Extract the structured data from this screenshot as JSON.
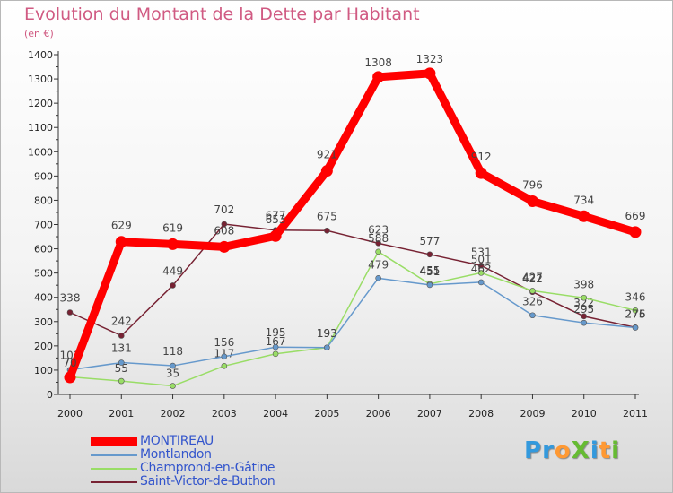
{
  "title": "Evolution du Montant de la Dette par Habitant",
  "subtitle": "(en €)",
  "logo_text": "ProXiti",
  "logo_letters": [
    "P",
    "r",
    "o",
    "X",
    "i",
    "t",
    "i"
  ],
  "logo_colors": [
    "#3399dd",
    "#3399dd",
    "#ff9933",
    "#66bb33",
    "#3399dd",
    "#ff9933",
    "#66bb33"
  ],
  "chart_data": {
    "type": "line",
    "title": "Evolution du Montant de la Dette par Habitant",
    "ylabel": "(en €)",
    "xlabel": "",
    "ylim": [
      0,
      1400
    ],
    "yticks": [
      0,
      100,
      200,
      300,
      400,
      500,
      600,
      700,
      800,
      900,
      1000,
      1100,
      1200,
      1300,
      1400
    ],
    "x": [
      "2000",
      "2001",
      "2002",
      "2003",
      "2004",
      "2005",
      "2006",
      "2007",
      "2008",
      "2009",
      "2010",
      "2011"
    ],
    "grid": false,
    "series": [
      {
        "name": "MONTIREAU",
        "color": "#ff0000",
        "values": [
          70,
          629,
          619,
          608,
          653,
          921,
          1308,
          1323,
          912,
          796,
          734,
          669
        ],
        "labels": [
          "70",
          "629",
          "619",
          "608",
          "653",
          "921",
          "1308",
          "1323",
          "912",
          "796",
          "734",
          "669"
        ]
      },
      {
        "name": "Montlandon",
        "color": "#6699cc",
        "values": [
          101,
          131,
          118,
          156,
          195,
          193,
          479,
          451,
          462,
          326,
          295,
          275
        ],
        "labels": [
          "101",
          "131",
          "118",
          "156",
          "195",
          "193",
          "479",
          "451",
          "462",
          "326",
          "295",
          "275"
        ]
      },
      {
        "name": "Champrond-en-Gâtine",
        "color": "#99dd66",
        "values": [
          72,
          55,
          35,
          117,
          167,
          193,
          588,
          455,
          501,
          427,
          398,
          346
        ],
        "labels": [
          "72",
          "55",
          "35",
          "117",
          "167",
          "193",
          "588",
          "455",
          "501",
          "427",
          "398",
          "346"
        ]
      },
      {
        "name": "Saint-Victor-de-Buthon",
        "color": "#772233",
        "values": [
          338,
          242,
          449,
          702,
          677,
          675,
          623,
          577,
          531,
          422,
          322,
          276
        ],
        "labels": [
          "338",
          "242",
          "449",
          "702",
          "677",
          "675",
          "623",
          "577",
          "531",
          "422",
          "322",
          "276"
        ]
      }
    ]
  }
}
